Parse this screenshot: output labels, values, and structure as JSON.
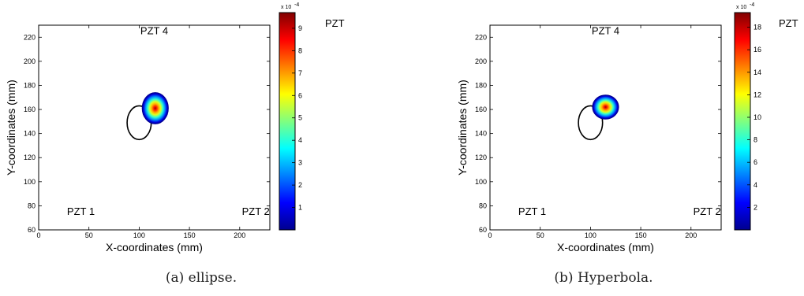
{
  "figures": [
    {
      "caption": "(a) ellipse."
    },
    {
      "caption": "(b) Hyperbola."
    }
  ],
  "chart_data": [
    {
      "type": "heatmap",
      "title": "",
      "xlabel": "X-coordinates (mm)",
      "ylabel": "Y-coordinates (mm)",
      "xlim": [
        0,
        230
      ],
      "ylim": [
        60,
        230
      ],
      "xticks": [
        0,
        50,
        100,
        150,
        200
      ],
      "yticks": [
        60,
        80,
        100,
        120,
        140,
        160,
        180,
        200,
        220
      ],
      "grid": false,
      "annotations": [
        {
          "text": "PZT 4",
          "x": 115,
          "y": 225
        },
        {
          "text": "PZT 1",
          "x": 42,
          "y": 75
        },
        {
          "text": "PZT 2",
          "x": 216,
          "y": 75
        }
      ],
      "hotspot": {
        "center": [
          116,
          161
        ],
        "radius": [
          13,
          13
        ],
        "peak": 9.5
      },
      "damage_outline": {
        "shape": "ellipse",
        "center": [
          100,
          149
        ],
        "radius": [
          12,
          14
        ]
      },
      "colorbar": {
        "label": "PZT",
        "exponent": "x 10",
        "exponent_power": "-4",
        "range": [
          0,
          9.7
        ],
        "ticks": [
          1,
          2,
          3,
          4,
          5,
          6,
          7,
          8,
          9
        ],
        "colormap": "jet"
      }
    },
    {
      "type": "heatmap",
      "title": "",
      "xlabel": "X-coordinates (mm)",
      "ylabel": "Y-coordinates (mm)",
      "xlim": [
        0,
        230
      ],
      "ylim": [
        60,
        230
      ],
      "xticks": [
        0,
        50,
        100,
        150,
        200
      ],
      "yticks": [
        60,
        80,
        100,
        120,
        140,
        160,
        180,
        200,
        220
      ],
      "grid": false,
      "annotations": [
        {
          "text": "PZT 4",
          "x": 115,
          "y": 225
        },
        {
          "text": "PZT 1",
          "x": 42,
          "y": 75
        },
        {
          "text": "PZT 2",
          "x": 216,
          "y": 75
        }
      ],
      "hotspot": {
        "center": [
          115,
          162
        ],
        "radius": [
          13,
          10
        ],
        "peak": 19
      },
      "damage_outline": {
        "shape": "ellipse",
        "center": [
          100,
          149
        ],
        "radius": [
          12,
          14
        ]
      },
      "colorbar": {
        "label": "PZT",
        "exponent": "x 10",
        "exponent_power": "-4",
        "range": [
          0,
          19.3
        ],
        "ticks": [
          2,
          4,
          6,
          8,
          10,
          12,
          14,
          16,
          18
        ],
        "colormap": "jet"
      }
    }
  ]
}
